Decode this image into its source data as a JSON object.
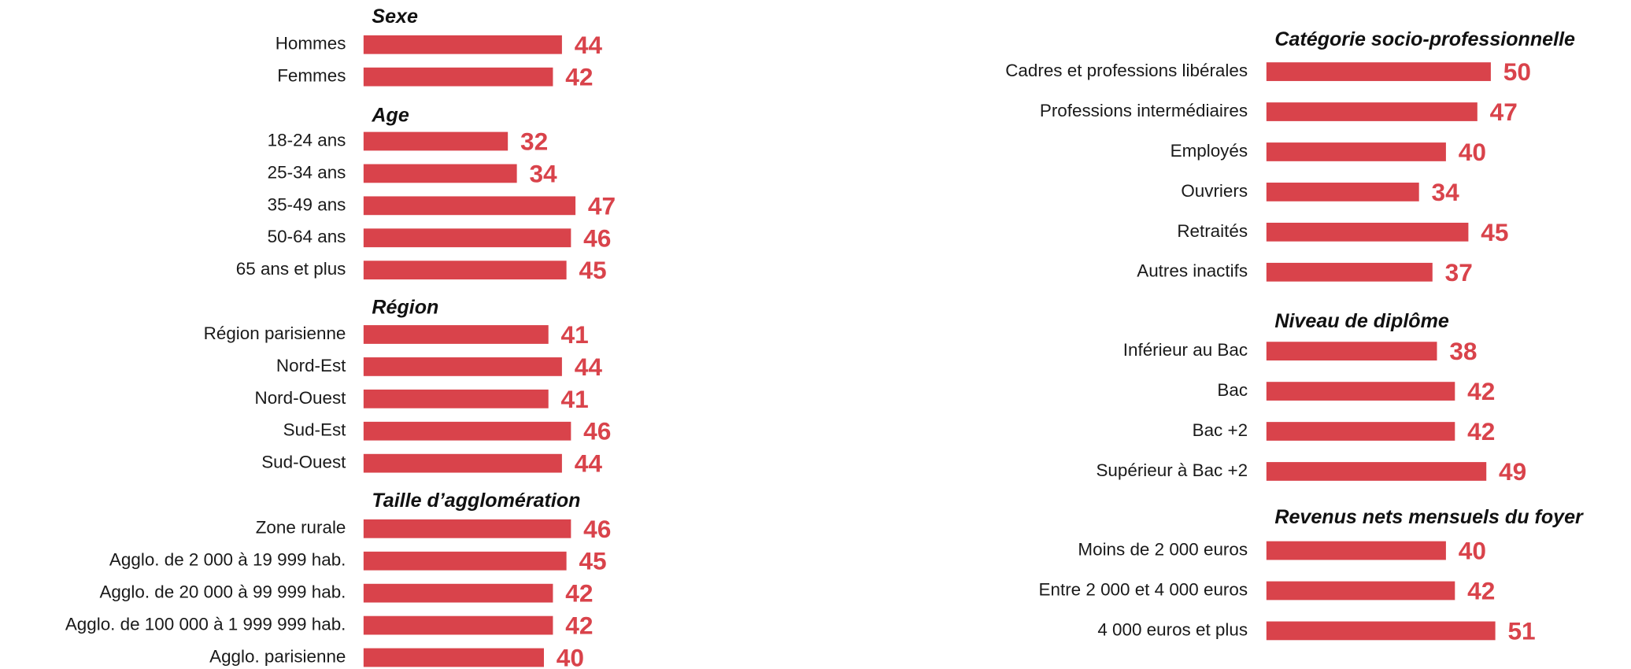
{
  "chart_data": [
    {
      "type": "bar",
      "orientation": "horizontal",
      "color": "#d9434b",
      "groups": [
        {
          "title": "Sexe",
          "categories": [
            "Hommes",
            "Femmes"
          ],
          "values": [
            44,
            42
          ]
        },
        {
          "title": "Age",
          "categories": [
            "18-24 ans",
            "25-34 ans",
            "35-49 ans",
            "50-64 ans",
            "65 ans et plus"
          ],
          "values": [
            32,
            34,
            47,
            46,
            45
          ]
        },
        {
          "title": "Région",
          "categories": [
            "Région parisienne",
            "Nord-Est",
            "Nord-Ouest",
            "Sud-Est",
            "Sud-Ouest"
          ],
          "values": [
            41,
            44,
            41,
            46,
            44
          ]
        },
        {
          "title": "Taille d’agglomération",
          "categories": [
            "Zone rurale",
            "Agglo. de 2 000 à 19 999 hab.",
            "Agglo. de 20 000 à 99 999 hab.",
            "Agglo. de 100 000 à 1 999 999 hab.",
            "Agglo. parisienne"
          ],
          "values": [
            46,
            45,
            42,
            42,
            40
          ]
        }
      ]
    },
    {
      "type": "bar",
      "orientation": "horizontal",
      "color": "#d9434b",
      "groups": [
        {
          "title": "Catégorie socio-professionnelle",
          "categories": [
            "Cadres et professions libérales",
            "Professions intermédiaires",
            "Employés",
            "Ouvriers",
            "Retraités",
            "Autres inactifs"
          ],
          "values": [
            50,
            47,
            40,
            34,
            45,
            37
          ]
        },
        {
          "title": "Niveau de diplôme",
          "categories": [
            "Inférieur au Bac",
            "Bac",
            "Bac +2",
            "Supérieur à Bac +2"
          ],
          "values": [
            38,
            42,
            42,
            49
          ]
        },
        {
          "title": "Revenus nets mensuels du foyer",
          "categories": [
            "Moins de 2 000 euros",
            "Entre 2 000 et 4 000 euros",
            "4 000 euros et plus"
          ],
          "values": [
            40,
            42,
            51
          ]
        }
      ]
    }
  ]
}
